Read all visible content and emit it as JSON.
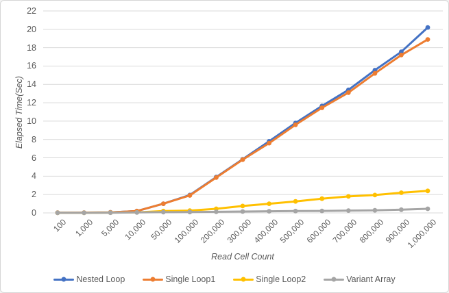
{
  "chart": {
    "background": "#ffffff",
    "border_color": "#d6d6d6",
    "text_color": "#595959",
    "grid_color": "#d9d9d9"
  },
  "chart_data": {
    "type": "line",
    "title": "",
    "xlabel": "Read Cell Count",
    "ylabel": "Elapsed Time(Sec)",
    "categories": [
      "100",
      "1,000",
      "5,000",
      "10,000",
      "50,000",
      "100,000",
      "200,000",
      "300,000",
      "400,000",
      "500,000",
      "600,000",
      "700,000",
      "800,000",
      "900,000",
      "1,000,000"
    ],
    "series": [
      {
        "name": "Nested Loop",
        "color": "#4472C4",
        "values": [
          0.02,
          0.03,
          0.06,
          0.2,
          1.0,
          1.95,
          3.9,
          5.85,
          7.8,
          9.8,
          11.65,
          13.4,
          15.55,
          17.55,
          20.2
        ]
      },
      {
        "name": "Single Loop1",
        "color": "#ED7D31",
        "values": [
          0.02,
          0.03,
          0.06,
          0.2,
          1.0,
          1.9,
          3.85,
          5.8,
          7.6,
          9.6,
          11.45,
          13.1,
          15.2,
          17.2,
          18.9
        ]
      },
      {
        "name": "Single Loop2",
        "color": "#FFC000",
        "values": [
          0.01,
          0.01,
          0.03,
          0.06,
          0.2,
          0.25,
          0.45,
          0.75,
          1.0,
          1.25,
          1.55,
          1.8,
          1.95,
          2.2,
          2.4
        ]
      },
      {
        "name": "Variant Array",
        "color": "#A5A5A5",
        "values": [
          0.01,
          0.01,
          0.02,
          0.05,
          0.08,
          0.1,
          0.12,
          0.15,
          0.18,
          0.2,
          0.22,
          0.25,
          0.28,
          0.35,
          0.45
        ]
      }
    ],
    "y_axis": {
      "min": 0,
      "max": 22,
      "step": 2,
      "ticks": [
        "0",
        "2",
        "4",
        "6",
        "8",
        "10",
        "12",
        "14",
        "16",
        "18",
        "20",
        "22"
      ]
    },
    "grid": true,
    "legend_position": "bottom",
    "marker": "circle"
  }
}
